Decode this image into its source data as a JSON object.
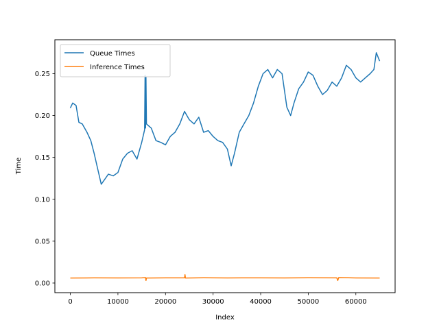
{
  "chart_data": {
    "type": "line",
    "title": "",
    "xlabel": "Index",
    "ylabel": "Time",
    "xlim": [
      -3250,
      68250
    ],
    "ylim": [
      -0.0115,
      0.2905
    ],
    "xticks": [
      0,
      10000,
      20000,
      30000,
      40000,
      50000,
      60000
    ],
    "xtick_labels": [
      "0",
      "10000",
      "20000",
      "30000",
      "40000",
      "50000",
      "60000"
    ],
    "yticks": [
      0.0,
      0.05,
      0.1,
      0.15,
      0.2,
      0.25
    ],
    "ytick_labels": [
      "0.00",
      "0.05",
      "0.10",
      "0.15",
      "0.20",
      "0.25"
    ],
    "grid": false,
    "legend_position": "upper-left",
    "series": [
      {
        "name": "Queue Times",
        "color": "#1f77b4",
        "x": [
          0,
          500,
          1200,
          1800,
          2500,
          3500,
          4300,
          5000,
          5800,
          6500,
          7000,
          8000,
          9000,
          10000,
          11000,
          12000,
          13000,
          14000,
          15000,
          15600,
          15700,
          15800,
          15900,
          16000,
          17000,
          18000,
          19000,
          20000,
          21000,
          22000,
          23000,
          24000,
          25000,
          26000,
          27000,
          28000,
          29000,
          30000,
          31000,
          32000,
          33000,
          33800,
          34500,
          35500,
          36500,
          37500,
          38500,
          39500,
          40500,
          41500,
          42500,
          43500,
          44500,
          45500,
          46300,
          47000,
          48000,
          49000,
          50000,
          51000,
          52000,
          53000,
          54000,
          55000,
          56000,
          57000,
          58000,
          59000,
          60000,
          61000,
          62000,
          63000,
          63800,
          64300,
          65000
        ],
        "y": [
          0.209,
          0.215,
          0.212,
          0.192,
          0.19,
          0.18,
          0.17,
          0.155,
          0.135,
          0.118,
          0.122,
          0.13,
          0.128,
          0.132,
          0.148,
          0.155,
          0.158,
          0.148,
          0.168,
          0.183,
          0.248,
          0.185,
          0.246,
          0.19,
          0.185,
          0.17,
          0.168,
          0.165,
          0.175,
          0.18,
          0.19,
          0.205,
          0.195,
          0.19,
          0.198,
          0.18,
          0.182,
          0.175,
          0.17,
          0.168,
          0.16,
          0.14,
          0.155,
          0.18,
          0.19,
          0.2,
          0.215,
          0.235,
          0.25,
          0.255,
          0.245,
          0.255,
          0.25,
          0.21,
          0.2,
          0.215,
          0.232,
          0.24,
          0.252,
          0.248,
          0.235,
          0.225,
          0.23,
          0.24,
          0.235,
          0.245,
          0.26,
          0.255,
          0.245,
          0.24,
          0.245,
          0.25,
          0.255,
          0.275,
          0.265
        ]
      },
      {
        "name": "Inference Times",
        "color": "#ff7f0e",
        "x": [
          0,
          5000,
          10000,
          15000,
          15800,
          15900,
          16000,
          20000,
          24000,
          24100,
          24200,
          28000,
          33000,
          36000,
          40000,
          45000,
          50000,
          56000,
          56200,
          56400,
          60000,
          65000
        ],
        "y": [
          0.006,
          0.0062,
          0.0061,
          0.0062,
          0.0065,
          0.003,
          0.006,
          0.0062,
          0.0062,
          0.01,
          0.006,
          0.0063,
          0.0061,
          0.0062,
          0.0062,
          0.0061,
          0.0063,
          0.0062,
          0.003,
          0.0065,
          0.0061,
          0.006
        ]
      }
    ]
  }
}
